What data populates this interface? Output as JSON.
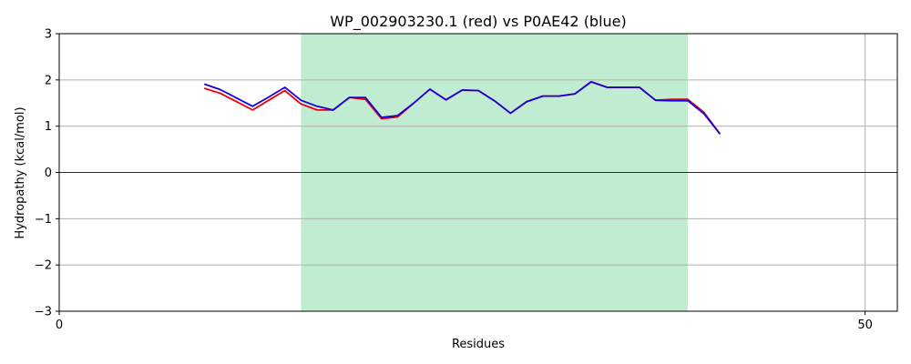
{
  "chart_data": {
    "type": "line",
    "title": "WP_002903230.1 (red) vs P0AE42 (blue)",
    "xlabel": "Residues",
    "ylabel": "Hydropathy (kcal/mol)",
    "xlim": [
      0,
      52
    ],
    "ylim": [
      -3,
      3
    ],
    "xticks": [
      0,
      50
    ],
    "yticks": [
      -3,
      -2,
      -1,
      0,
      1,
      2,
      3
    ],
    "ytick_labels": [
      "−3",
      "−2",
      "−1",
      "0",
      "1",
      "2",
      "3"
    ],
    "grid": true,
    "zero_line": 0,
    "highlight_region": {
      "x_start": 15,
      "x_end": 39,
      "color": "#c0ecd1"
    },
    "series": [
      {
        "name": "WP_002903230.1",
        "color": "#e8000b",
        "x": [
          9,
          10,
          11,
          12,
          13,
          14,
          15,
          16,
          17,
          18,
          19,
          20,
          21,
          22,
          23,
          24,
          25,
          26,
          27,
          28,
          29,
          30,
          31,
          32,
          33,
          34,
          35,
          36,
          37,
          38,
          39,
          40,
          41
        ],
        "y": [
          1.82,
          1.71,
          1.53,
          1.35,
          1.56,
          1.77,
          1.48,
          1.35,
          1.35,
          1.62,
          1.58,
          1.16,
          1.2,
          1.5,
          1.8,
          1.57,
          1.78,
          1.77,
          1.55,
          1.28,
          1.53,
          1.65,
          1.65,
          1.7,
          1.96,
          1.84,
          1.84,
          1.84,
          1.56,
          1.58,
          1.58,
          1.3,
          0.83
        ]
      },
      {
        "name": "P0AE42",
        "color": "#1a00d8",
        "x": [
          9,
          10,
          11,
          12,
          13,
          14,
          15,
          16,
          17,
          18,
          19,
          20,
          21,
          22,
          23,
          24,
          25,
          26,
          27,
          28,
          29,
          30,
          31,
          32,
          33,
          34,
          35,
          36,
          37,
          38,
          39,
          40,
          41
        ],
        "y": [
          1.91,
          1.79,
          1.61,
          1.43,
          1.63,
          1.84,
          1.56,
          1.43,
          1.35,
          1.62,
          1.62,
          1.19,
          1.23,
          1.5,
          1.8,
          1.57,
          1.78,
          1.77,
          1.55,
          1.28,
          1.53,
          1.65,
          1.65,
          1.7,
          1.96,
          1.84,
          1.84,
          1.84,
          1.56,
          1.55,
          1.55,
          1.27,
          0.83
        ]
      }
    ]
  }
}
